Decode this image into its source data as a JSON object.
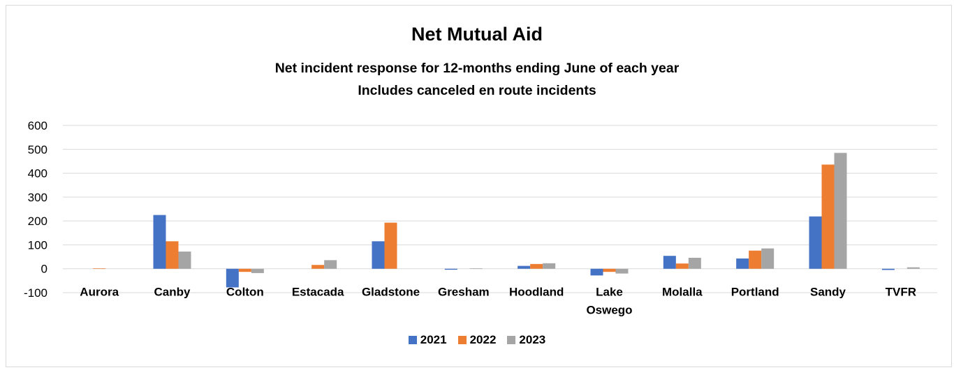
{
  "chart_data": {
    "type": "bar",
    "title": "Net Mutual Aid",
    "subtitle_line1": "Net incident response for 12-months ending June of each year",
    "subtitle_line2": "Includes canceled en route incidents",
    "categories": [
      "Aurora",
      "Canby",
      "Colton",
      "Estacada",
      "Gladstone",
      "Gresham",
      "Hoodland",
      "Lake Oswego",
      "Molalla",
      "Portland",
      "Sandy",
      "TVFR"
    ],
    "series": [
      {
        "name": "2021",
        "color": "#4472C4",
        "values": [
          0,
          225,
          -78,
          0,
          115,
          -4,
          12,
          -28,
          54,
          43,
          219,
          -5
        ]
      },
      {
        "name": "2022",
        "color": "#ED7D31",
        "values": [
          2,
          115,
          -13,
          16,
          193,
          0,
          20,
          -13,
          22,
          76,
          436,
          0
        ]
      },
      {
        "name": "2023",
        "color": "#A5A5A5",
        "values": [
          0,
          72,
          -18,
          36,
          0,
          2,
          23,
          -20,
          46,
          85,
          485,
          6
        ]
      }
    ],
    "ylim": [
      -100,
      600
    ],
    "yticks": [
      -100,
      0,
      100,
      200,
      300,
      400,
      500,
      600
    ],
    "grid": true,
    "legend_position": "bottom",
    "xlabel": "",
    "ylabel": ""
  }
}
